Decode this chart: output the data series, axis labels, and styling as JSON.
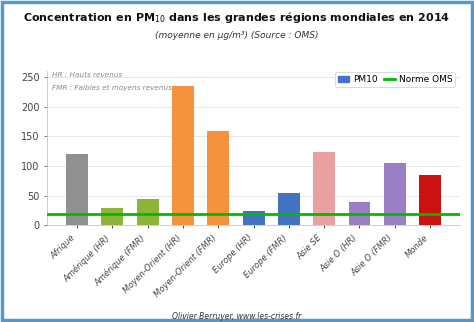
{
  "categories": [
    "Afrique",
    "Amérique (HR)",
    "Amérique (FMR)",
    "Moyen-Orient (HR)",
    "Moyen-Orient (FMR)",
    "Europe (HR)",
    "Europe (FMR)",
    "Asie SE",
    "Asie O (HR)",
    "Asie O (FMR)",
    "Monde"
  ],
  "values": [
    120,
    30,
    45,
    234,
    158,
    25,
    55,
    124,
    40,
    105,
    84
  ],
  "colors": [
    "#909090",
    "#8db33a",
    "#8db33a",
    "#f5923e",
    "#f5923e",
    "#4472c4",
    "#4472c4",
    "#e8a0a0",
    "#9b7fc4",
    "#9b7fc4",
    "#cc1111"
  ],
  "oms_line": 20,
  "title_main": "Concentration en PM$_{10}$ dans les grandes régions mondiales en 2014",
  "title_sub": "(moyenne en μg/m³) (Source : OMS)",
  "note1": "HR : Hauts revenus",
  "note2": "FMR : Faibles et moyens revenus",
  "legend_pm10_label": "PM10",
  "legend_oms_label": "Norme OMS",
  "pm10_color": "#4472c4",
  "oms_line_color": "#00bb00",
  "ylim": [
    0,
    260
  ],
  "yticks": [
    0,
    50,
    100,
    150,
    200,
    250
  ],
  "footer": "Olivier Berruyer, www.les-crises.fr",
  "bg_color": "#ffffff",
  "plot_bg": "#ffffff",
  "border_color": "#5599cc"
}
